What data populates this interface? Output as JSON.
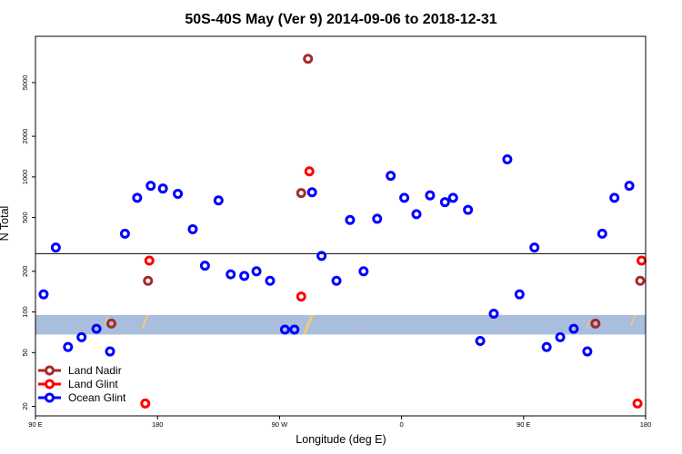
{
  "chart_data": {
    "type": "scatter",
    "title": "50S-40S May (Ver 9)   2014-09-06 to 2018-12-31",
    "xlabel": "Longitude (deg E)",
    "ylabel": "N Total",
    "x_scale": "longitude, 90 E to 180 wrapping through 180/90 W/0/90 E",
    "x_range_deg_east": [
      90,
      540
    ],
    "x_ticks": [
      {
        "value": 90,
        "label": "90 E"
      },
      {
        "value": 180,
        "label": "180"
      },
      {
        "value": 270,
        "label": "90 W"
      },
      {
        "value": 360,
        "label": "0"
      },
      {
        "value": 450,
        "label": "90 E"
      },
      {
        "value": 540,
        "label": "180"
      }
    ],
    "y_scale": "log",
    "ylim": [
      17,
      11000
    ],
    "y_ticks": [
      {
        "value": 20,
        "label": "20"
      },
      {
        "value": 50,
        "label": "50"
      },
      {
        "value": 100,
        "label": "100"
      },
      {
        "value": 200,
        "label": "200"
      },
      {
        "value": 500,
        "label": "500"
      },
      {
        "value": 1000,
        "label": "1000"
      },
      {
        "value": 2000,
        "label": "2000"
      },
      {
        "value": 5000,
        "label": "5000"
      }
    ],
    "reference_line": 270,
    "band": {
      "ymin": 68,
      "ymax": 95,
      "color": "#a8bedc"
    },
    "land_marker_color": "#f0cc70",
    "land_strips": [
      {
        "x": 142,
        "y_from": 80,
        "y_to": 93
      },
      {
        "x": 170,
        "y_from": 75,
        "y_to": 95
      },
      {
        "x": 290,
        "y_from": 68,
        "y_to": 95
      },
      {
        "x": 327,
        "y_from": 74,
        "y_to": 76
      },
      {
        "x": 431,
        "y_from": 73,
        "y_to": 76
      },
      {
        "x": 497,
        "y_from": 75,
        "y_to": 86
      },
      {
        "x": 530,
        "y_from": 78,
        "y_to": 95
      }
    ],
    "series": [
      {
        "name": "Land Nadir",
        "color": "#a52a2a",
        "points": [
          {
            "x": 146,
            "y": 82
          },
          {
            "x": 173,
            "y": 170
          },
          {
            "x": 286,
            "y": 760
          },
          {
            "x": 291,
            "y": 7500
          },
          {
            "x": 503,
            "y": 82
          },
          {
            "x": 536,
            "y": 170
          }
        ]
      },
      {
        "name": "Land Glint",
        "color": "#ff0000",
        "points": [
          {
            "x": 171,
            "y": 21
          },
          {
            "x": 174,
            "y": 240
          },
          {
            "x": 286,
            "y": 130
          },
          {
            "x": 292,
            "y": 1100
          },
          {
            "x": 534,
            "y": 21
          },
          {
            "x": 537,
            "y": 240
          }
        ]
      },
      {
        "name": "Ocean Glint",
        "color": "#0000ff",
        "points": [
          {
            "x": 96,
            "y": 135
          },
          {
            "x": 105,
            "y": 300
          },
          {
            "x": 114,
            "y": 55
          },
          {
            "x": 124,
            "y": 65
          },
          {
            "x": 135,
            "y": 75
          },
          {
            "x": 145,
            "y": 51
          },
          {
            "x": 156,
            "y": 380
          },
          {
            "x": 165,
            "y": 700
          },
          {
            "x": 175,
            "y": 860
          },
          {
            "x": 184,
            "y": 820
          },
          {
            "x": 195,
            "y": 750
          },
          {
            "x": 206,
            "y": 410
          },
          {
            "x": 215,
            "y": 220
          },
          {
            "x": 225,
            "y": 670
          },
          {
            "x": 234,
            "y": 190
          },
          {
            "x": 244,
            "y": 185
          },
          {
            "x": 253,
            "y": 200
          },
          {
            "x": 263,
            "y": 170
          },
          {
            "x": 274,
            "y": 74
          },
          {
            "x": 281,
            "y": 74
          },
          {
            "x": 294,
            "y": 770
          },
          {
            "x": 301,
            "y": 260
          },
          {
            "x": 312,
            "y": 170
          },
          {
            "x": 322,
            "y": 480
          },
          {
            "x": 332,
            "y": 200
          },
          {
            "x": 342,
            "y": 490
          },
          {
            "x": 352,
            "y": 1020
          },
          {
            "x": 362,
            "y": 700
          },
          {
            "x": 371,
            "y": 530
          },
          {
            "x": 381,
            "y": 730
          },
          {
            "x": 392,
            "y": 650
          },
          {
            "x": 398,
            "y": 700
          },
          {
            "x": 409,
            "y": 570
          },
          {
            "x": 418,
            "y": 61
          },
          {
            "x": 428,
            "y": 97
          },
          {
            "x": 438,
            "y": 1350
          },
          {
            "x": 447,
            "y": 135
          },
          {
            "x": 458,
            "y": 300
          },
          {
            "x": 467,
            "y": 55
          },
          {
            "x": 477,
            "y": 65
          },
          {
            "x": 487,
            "y": 75
          },
          {
            "x": 497,
            "y": 51
          },
          {
            "x": 508,
            "y": 380
          },
          {
            "x": 517,
            "y": 700
          },
          {
            "x": 528,
            "y": 860
          }
        ]
      }
    ],
    "legend": {
      "placement": "bottom-left",
      "entries": [
        "Land Nadir",
        "Land Glint",
        "Ocean Glint"
      ]
    },
    "grid": false
  }
}
